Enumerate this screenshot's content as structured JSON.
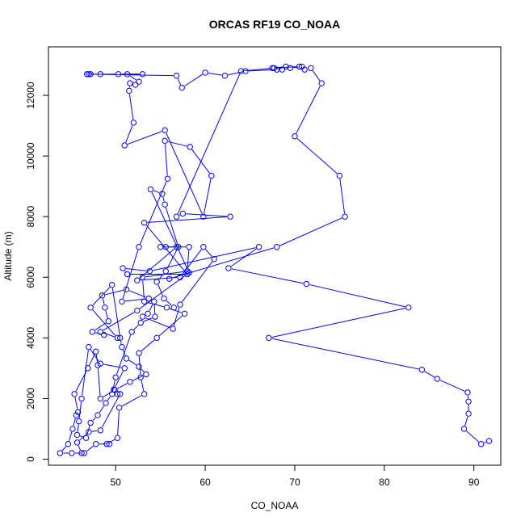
{
  "chart_data": {
    "type": "line",
    "title": "ORCAS RF19 CO_NOAA",
    "xlabel": "CO_NOAA",
    "ylabel": "Altitude (m)",
    "xlim": [
      42.5,
      93
    ],
    "ylim": [
      -200,
      13600
    ],
    "x_ticks": [
      50,
      60,
      70,
      80,
      90
    ],
    "y_ticks": [
      0,
      2000,
      4000,
      6000,
      8000,
      10000,
      12000
    ],
    "x_tick_labels": [
      "50",
      "60",
      "70",
      "80",
      "90"
    ],
    "y_tick_labels": [
      "0",
      "2000",
      "4000",
      "6000",
      "8000",
      "10000",
      "12000"
    ],
    "series_color": "#0000ff",
    "grid": false,
    "legend": "none",
    "markers": "open-circle",
    "series": [
      {
        "x": [
          91.7,
          90.8,
          88.9,
          89.4,
          89.4,
          89.3,
          85.9,
          84.2,
          67.1,
          82.7,
          71.3,
          62.6,
          66.0,
          53.8,
          50.8,
          51.3,
          58.0,
          53.2,
          62.8,
          57.5,
          56.8,
          64.0,
          67.7,
          68.6,
          69.5,
          70.8,
          71.1,
          71.8,
          73.0,
          70.0,
          75.0,
          75.6,
          68.0,
          56.0
        ],
        "y": [
          600,
          500,
          1000,
          1500,
          1900,
          2200,
          2650,
          2950,
          4000,
          5000,
          5780,
          6300,
          7000,
          6200,
          6300,
          6100,
          6100,
          7800,
          8000,
          8100,
          8000,
          12800,
          12900,
          12850,
          12900,
          12950,
          12850,
          12900,
          12400,
          10650,
          9350,
          8000,
          7000,
          5950
        ]
      },
      {
        "x": [
          56.5,
          55.4,
          54.6,
          55.6,
          57.0,
          55.5,
          55.2,
          53.9,
          58.2,
          52.4,
          48.3,
          50.2,
          47.2,
          49.6,
          50.5,
          50.7,
          51.2,
          52.6,
          53.4,
          51.6,
          49.9,
          48.3,
          48.0,
          47.8,
          46.9,
          45.4,
          45.8,
          45.6,
          45.2,
          44.7,
          43.8,
          45.1,
          46.5,
          47.8,
          49.3
        ],
        "y": [
          5000,
          5300,
          5850,
          6200,
          7000,
          8400,
          8750,
          8900,
          6150,
          4900,
          4200,
          4000,
          5000,
          5750,
          4000,
          3700,
          3320,
          3050,
          2800,
          2550,
          2280,
          2000,
          3100,
          3550,
          3000,
          2150,
          1550,
          1450,
          1000,
          500,
          200,
          200,
          200,
          500,
          500
        ]
      },
      {
        "x": [
          46.2,
          45.7,
          47.0,
          48.3,
          50.5,
          50.2,
          49.8,
          51.0,
          48.3,
          47.0,
          46.2,
          45.9,
          45.7,
          46.7,
          47.2,
          48.0,
          48.9,
          49.6,
          50.0,
          51.8,
          52.8,
          54.4,
          54.3,
          53.6
        ],
        "y": [
          200,
          550,
          900,
          950,
          2150,
          2150,
          2300,
          3000,
          3150,
          3700,
          2000,
          1250,
          800,
          700,
          1200,
          1450,
          1850,
          2150,
          2700,
          4200,
          4500,
          4700,
          5200,
          4800
        ]
      },
      {
        "x": [
          49.0,
          50.2,
          50.4,
          53.2,
          52.8,
          52.6,
          54.6,
          57.7,
          55.7,
          53.2,
          53.0,
          58.0,
          58.2,
          55.0,
          55.6,
          56.8,
          52.4,
          57.2,
          59.8,
          61.0,
          57.2,
          56.4,
          53.0
        ],
        "y": [
          500,
          700,
          1700,
          2150,
          2700,
          3500,
          4000,
          4800,
          5000,
          5200,
          6000,
          6200,
          7000,
          7000,
          7000,
          7000,
          5900,
          6000,
          7000,
          6600,
          5100,
          4300,
          4700
        ]
      },
      {
        "x": [
          48.7,
          47.4,
          49.2,
          48.8,
          48.5,
          51.2,
          53.7,
          50.7,
          52.6,
          55.8,
          55.5,
          58.3,
          60.7,
          59.8,
          55.5,
          51.0,
          52.0,
          51.5,
          51.6,
          52.2,
          52.6,
          51.3,
          53.0,
          50.3,
          48.3,
          47.0,
          47.2,
          46.8,
          56.8,
          57.4,
          60.0,
          62.2,
          64.5,
          68.0,
          69.0,
          67.5,
          70.5
        ],
        "y": [
          4100,
          4200,
          4550,
          5000,
          5400,
          5600,
          5300,
          5200,
          7000,
          9250,
          10500,
          10300,
          9350,
          8000,
          10850,
          10350,
          11100,
          12150,
          12400,
          12350,
          12450,
          12700,
          12700,
          12700,
          12700,
          12700,
          12700,
          12700,
          12650,
          12250,
          12750,
          12650,
          12800,
          12850,
          12950,
          12900,
          12950
        ]
      }
    ]
  }
}
